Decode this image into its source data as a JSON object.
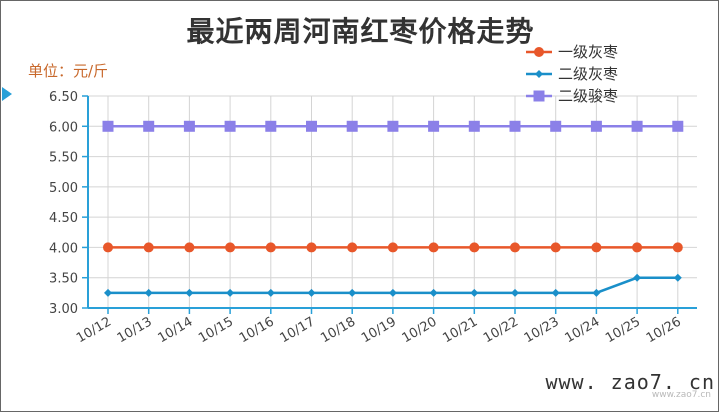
{
  "chart_data": {
    "type": "line",
    "title": "最近两周河南红枣价格走势",
    "unit_label": "单位：元/斤",
    "categories": [
      "10/12",
      "10/13",
      "10/14",
      "10/15",
      "10/16",
      "10/17",
      "10/18",
      "10/19",
      "10/20",
      "10/21",
      "10/22",
      "10/23",
      "10/24",
      "10/25",
      "10/26"
    ],
    "ylim": [
      3.0,
      6.5
    ],
    "yticks": [
      "6.50",
      "6.00",
      "5.50",
      "5.00",
      "4.50",
      "4.00",
      "3.50",
      "3.00"
    ],
    "grid": true,
    "legend_position": "top-right",
    "series": [
      {
        "name": "一级灰枣",
        "color": "#e8572a",
        "marker": "circle",
        "values": [
          4.0,
          4.0,
          4.0,
          4.0,
          4.0,
          4.0,
          4.0,
          4.0,
          4.0,
          4.0,
          4.0,
          4.0,
          4.0,
          4.0,
          4.0
        ]
      },
      {
        "name": "二级灰枣",
        "color": "#1a8fc9",
        "marker": "diamond",
        "values": [
          3.25,
          3.25,
          3.25,
          3.25,
          3.25,
          3.25,
          3.25,
          3.25,
          3.25,
          3.25,
          3.25,
          3.25,
          3.25,
          3.5,
          3.5
        ]
      },
      {
        "name": "二级骏枣",
        "color": "#8b80e8",
        "marker": "square",
        "values": [
          6.0,
          6.0,
          6.0,
          6.0,
          6.0,
          6.0,
          6.0,
          6.0,
          6.0,
          6.0,
          6.0,
          6.0,
          6.0,
          6.0,
          6.0
        ]
      }
    ]
  },
  "watermark": "www. zao7. cn",
  "watermark_small": "www.zao7.cn",
  "colors": {
    "axis": "#29a0d8",
    "grid": "#d4d4d4",
    "unit_text": "#c8682b"
  }
}
